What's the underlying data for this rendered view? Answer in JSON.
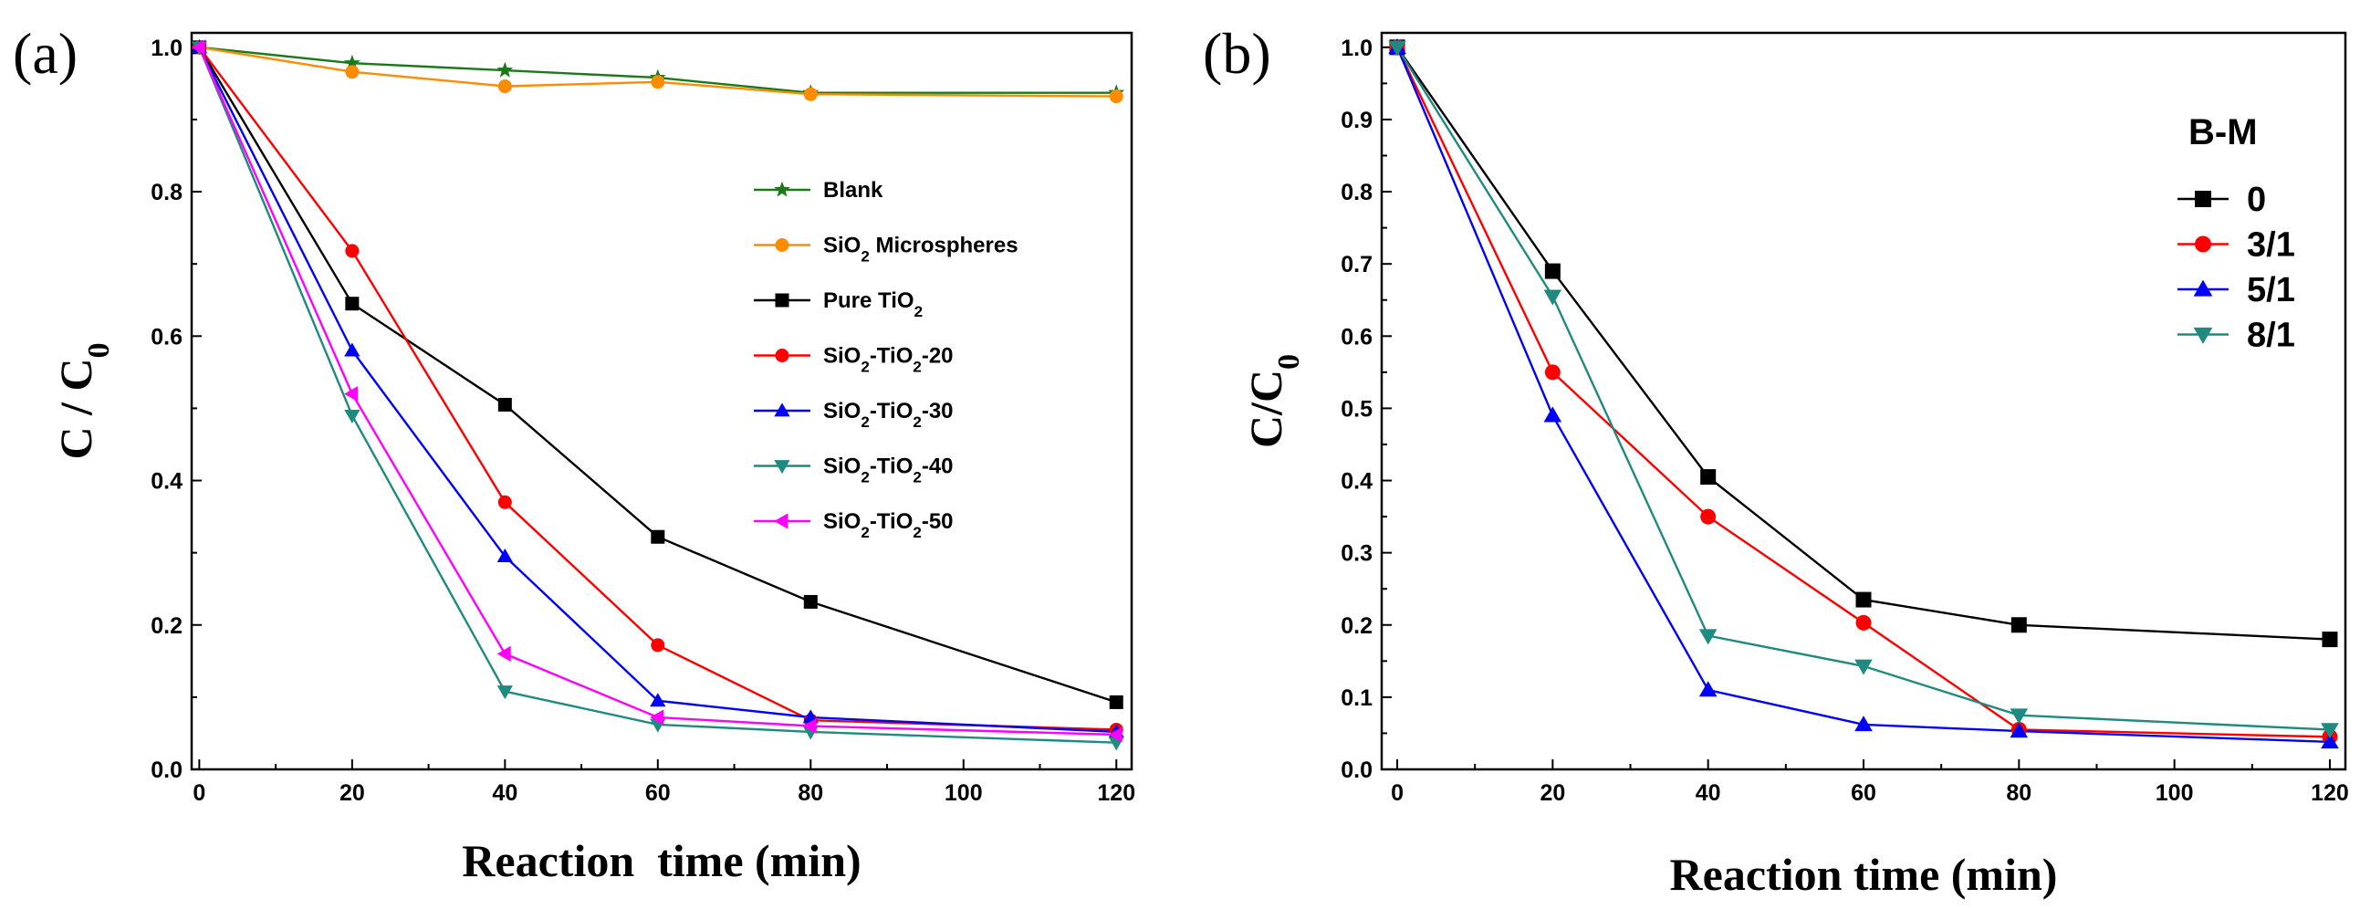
{
  "chart_data": [
    {
      "panel": "(a)",
      "type": "line",
      "xlabel": "Reaction  time (min)",
      "ylabel_main": "C / C",
      "ylabel_sub": "0",
      "xlim": [
        -1,
        122
      ],
      "ylim": [
        0,
        1.02
      ],
      "xticks": [
        0,
        20,
        40,
        60,
        80,
        100,
        120
      ],
      "yticks": [
        0.0,
        0.2,
        0.4,
        0.6,
        0.8,
        1.0
      ],
      "xtick_labels": [
        "0",
        "20",
        "40",
        "60",
        "80",
        "100",
        "120"
      ],
      "ytick_labels": [
        "0.0",
        "0.2",
        "0.4",
        "0.6",
        "0.8",
        "1.0"
      ],
      "legend_position": "center-right",
      "series": [
        {
          "name": "Blank",
          "legend": [
            {
              "t": "Blank"
            }
          ],
          "color": "#1a7a1a",
          "marker": "star",
          "x": [
            0,
            20,
            40,
            60,
            80,
            120
          ],
          "y": [
            1.0,
            0.978,
            0.968,
            0.958,
            0.937,
            0.937
          ]
        },
        {
          "name": "SiO2 Microspheres",
          "legend": [
            {
              "t": "SiO"
            },
            {
              "t": "2",
              "sub": true
            },
            {
              "t": " Microspheres"
            }
          ],
          "color": "#ff8c00",
          "marker": "circle",
          "x": [
            0,
            20,
            40,
            60,
            80,
            120
          ],
          "y": [
            1.0,
            0.966,
            0.946,
            0.952,
            0.935,
            0.932
          ]
        },
        {
          "name": "Pure TiO2",
          "legend": [
            {
              "t": "Pure TiO"
            },
            {
              "t": "2",
              "sub": true
            }
          ],
          "color": "#000000",
          "marker": "square",
          "x": [
            0,
            20,
            40,
            60,
            80,
            120
          ],
          "y": [
            1.0,
            0.645,
            0.505,
            0.322,
            0.232,
            0.093
          ]
        },
        {
          "name": "SiO2-TiO2-20",
          "legend": [
            {
              "t": "SiO"
            },
            {
              "t": "2",
              "sub": true
            },
            {
              "t": "-TiO"
            },
            {
              "t": "2",
              "sub": true
            },
            {
              "t": "-20"
            }
          ],
          "color": "#ff0000",
          "marker": "circle",
          "x": [
            0,
            20,
            40,
            60,
            80,
            120
          ],
          "y": [
            1.0,
            0.718,
            0.37,
            0.172,
            0.068,
            0.055
          ]
        },
        {
          "name": "SiO2-TiO2-30",
          "legend": [
            {
              "t": "SiO"
            },
            {
              "t": "2",
              "sub": true
            },
            {
              "t": "-TiO"
            },
            {
              "t": "2",
              "sub": true
            },
            {
              "t": "-30"
            }
          ],
          "color": "#0000ff",
          "marker": "triangle-up",
          "x": [
            0,
            20,
            40,
            60,
            80,
            120
          ],
          "y": [
            1.0,
            0.58,
            0.295,
            0.095,
            0.072,
            0.052
          ]
        },
        {
          "name": "SiO2-TiO2-40",
          "legend": [
            {
              "t": "SiO"
            },
            {
              "t": "2",
              "sub": true
            },
            {
              "t": "-TiO"
            },
            {
              "t": "2",
              "sub": true
            },
            {
              "t": "-40"
            }
          ],
          "color": "#1f8a80",
          "marker": "triangle-down",
          "x": [
            0,
            20,
            40,
            60,
            80,
            120
          ],
          "y": [
            1.0,
            0.49,
            0.108,
            0.062,
            0.052,
            0.037
          ]
        },
        {
          "name": "SiO2-TiO2-50",
          "legend": [
            {
              "t": "SiO"
            },
            {
              "t": "2",
              "sub": true
            },
            {
              "t": "-TiO"
            },
            {
              "t": "2",
              "sub": true
            },
            {
              "t": "-50"
            }
          ],
          "color": "#ff00ff",
          "marker": "triangle-left",
          "x": [
            0,
            20,
            40,
            60,
            80,
            120
          ],
          "y": [
            1.0,
            0.52,
            0.16,
            0.072,
            0.06,
            0.048
          ]
        }
      ]
    },
    {
      "panel": "(b)",
      "type": "line",
      "xlabel": "Reaction time (min)",
      "ylabel_main": "C/C",
      "ylabel_sub": "0",
      "xlim": [
        -2,
        122
      ],
      "ylim": [
        0,
        1.02
      ],
      "xticks": [
        0,
        20,
        40,
        60,
        80,
        100,
        120
      ],
      "yticks": [
        0.0,
        0.1,
        0.2,
        0.3,
        0.4,
        0.5,
        0.6,
        0.7,
        0.8,
        0.9,
        1.0
      ],
      "xtick_labels": [
        "0",
        "20",
        "40",
        "60",
        "80",
        "100",
        "120"
      ],
      "ytick_labels": [
        "0.0",
        "0.1",
        "0.2",
        "0.3",
        "0.4",
        "0.5",
        "0.6",
        "0.7",
        "0.8",
        "0.9",
        "1.0"
      ],
      "legend_title": "B-M",
      "legend_position": "top-right",
      "series": [
        {
          "name": "0",
          "legend": [
            {
              "t": "0"
            }
          ],
          "color": "#000000",
          "marker": "square",
          "x": [
            0,
            20,
            40,
            60,
            80,
            120
          ],
          "y": [
            1.0,
            0.69,
            0.405,
            0.235,
            0.2,
            0.18
          ]
        },
        {
          "name": "3/1",
          "legend": [
            {
              "t": "3/1"
            }
          ],
          "color": "#ff0000",
          "marker": "circle",
          "x": [
            0,
            20,
            40,
            60,
            80,
            120
          ],
          "y": [
            1.0,
            0.55,
            0.35,
            0.203,
            0.055,
            0.045
          ]
        },
        {
          "name": "5/1",
          "legend": [
            {
              "t": "5/1"
            }
          ],
          "color": "#0000ff",
          "marker": "triangle-up",
          "x": [
            0,
            20,
            40,
            60,
            80,
            120
          ],
          "y": [
            1.0,
            0.49,
            0.11,
            0.062,
            0.053,
            0.038
          ]
        },
        {
          "name": "8/1",
          "legend": [
            {
              "t": "8/1"
            }
          ],
          "color": "#1f8a80",
          "marker": "triangle-down",
          "x": [
            0,
            20,
            40,
            60,
            80,
            120
          ],
          "y": [
            1.0,
            0.655,
            0.185,
            0.143,
            0.075,
            0.055
          ]
        }
      ]
    }
  ]
}
